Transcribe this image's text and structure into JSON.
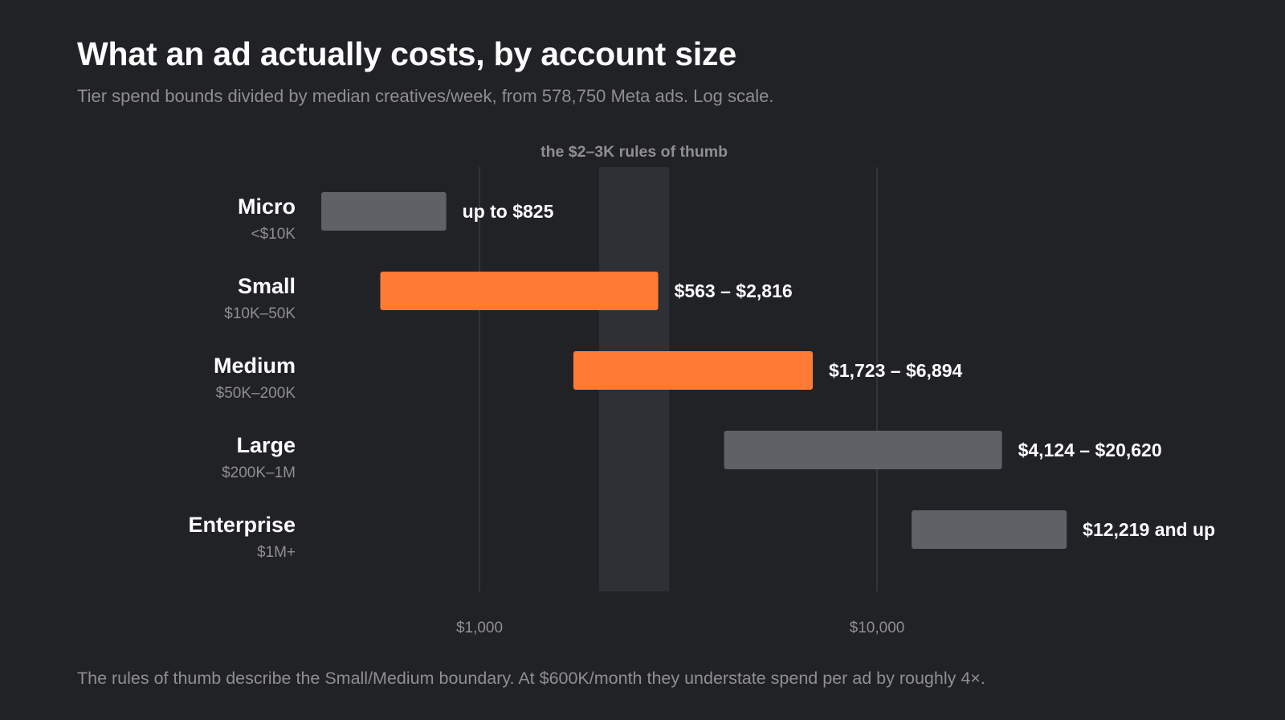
{
  "title": "What an ad actually costs, by account size",
  "subtitle": "Tier spend bounds divided by median creatives/week, from 578,750 Meta ads. Log scale.",
  "footnote": "The rules of thumb describe the Small/Medium boundary. At $600K/month they understate spend per ad by roughly 4×.",
  "colors": {
    "background": "#212226",
    "highlight": "#ff7a35",
    "neutral": "#5f6167",
    "band": "#2f3035",
    "gridline": "#3a3b40",
    "muted_text": "#8e8e93"
  },
  "chart_data": {
    "type": "bar",
    "orientation": "horizontal-range",
    "x_scale": "log",
    "xlim": [
      300,
      40000
    ],
    "x_ticks": [
      {
        "value": 1000,
        "label": "$1,000"
      },
      {
        "value": 10000,
        "label": "$10,000"
      }
    ],
    "grid": true,
    "reference_band": {
      "from": 2000,
      "to": 3000,
      "label": "the $2–3K rules of thumb"
    },
    "categories": [
      {
        "name": "Micro",
        "sub": "<$10K",
        "low": 400,
        "high": 825,
        "label": "up to $825",
        "highlight": false
      },
      {
        "name": "Small",
        "sub": "$10K–50K",
        "low": 563,
        "high": 2816,
        "label": "$563 – $2,816",
        "highlight": true
      },
      {
        "name": "Medium",
        "sub": "$50K–200K",
        "low": 1723,
        "high": 6894,
        "label": "$1,723 – $6,894",
        "highlight": true
      },
      {
        "name": "Large",
        "sub": "$200K–1M",
        "low": 4124,
        "high": 20620,
        "label": "$4,124 – $20,620",
        "highlight": false
      },
      {
        "name": "Enterprise",
        "sub": "$1M+",
        "low": 12219,
        "high": 30000,
        "label": "$12,219 and up",
        "highlight": false
      }
    ]
  }
}
